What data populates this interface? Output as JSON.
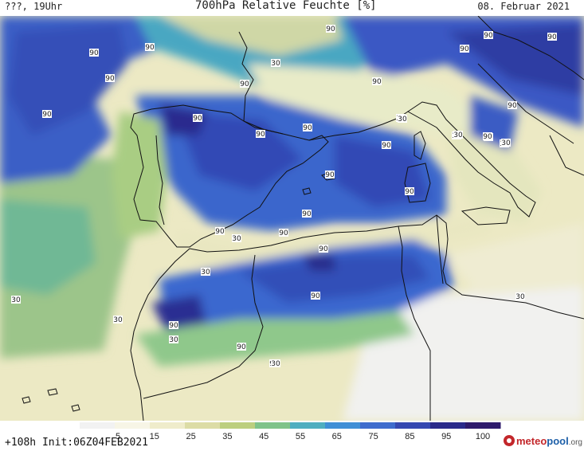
{
  "header": {
    "left": "???, 19Uhr",
    "title": "700hPa Relative Feuchte [%]",
    "date": "08. Februar 2021"
  },
  "footer": {
    "run_info": "+108h Init:06Z04FEB2021",
    "colorbar_ticks": [
      "5",
      "15",
      "25",
      "35",
      "45",
      "55",
      "65",
      "75",
      "85",
      "95",
      "100"
    ],
    "colorbar_colors": [
      "#f2f2f2",
      "#f7f5e6",
      "#efeccb",
      "#dcdca6",
      "#bccf7f",
      "#7fc38a",
      "#4faec0",
      "#3f8fd6",
      "#3e6ccd",
      "#3548b0",
      "#2a2a8a",
      "#2e1a6b"
    ],
    "brand": {
      "part1": "meteo",
      "part2": "pool",
      "part3": ".org"
    }
  },
  "map": {
    "contour_labels": [
      "90",
      "90",
      "90",
      "90",
      "90",
      "90",
      "90",
      "90",
      "90",
      "90",
      "90",
      "90",
      "90",
      "90",
      "90",
      "90",
      "90",
      "90",
      "90",
      "90",
      "90",
      "90",
      "90",
      "90",
      "90",
      "90",
      "90",
      "30",
      "30",
      "30",
      "30",
      "30",
      "30",
      "30",
      "30",
      "30",
      "30",
      "30",
      "30",
      "30",
      "30"
    ]
  }
}
